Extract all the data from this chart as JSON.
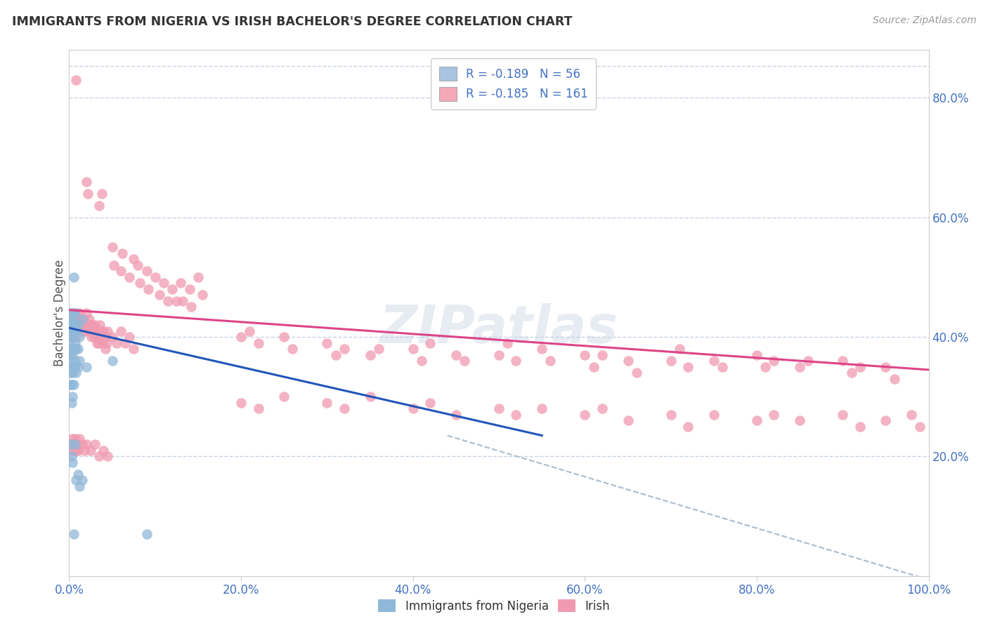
{
  "title": "IMMIGRANTS FROM NIGERIA VS IRISH BACHELOR'S DEGREE CORRELATION CHART",
  "source": "Source: ZipAtlas.com",
  "ylabel": "Bachelor's Degree",
  "xlim": [
    0.0,
    1.0
  ],
  "ylim": [
    0.0,
    0.88
  ],
  "xtick_labels": [
    "0.0%",
    "20.0%",
    "40.0%",
    "60.0%",
    "80.0%",
    "100.0%"
  ],
  "xtick_vals": [
    0.0,
    0.2,
    0.4,
    0.6,
    0.8,
    1.0
  ],
  "ytick_labels": [
    "20.0%",
    "40.0%",
    "60.0%",
    "80.0%"
  ],
  "ytick_vals": [
    0.2,
    0.4,
    0.6,
    0.8
  ],
  "legend_entries": [
    {
      "label": "R = -0.189   N = 56",
      "color": "#a8c4e0"
    },
    {
      "label": "R = -0.185   N = 161",
      "color": "#f4a8b8"
    }
  ],
  "legend_text_color": "#4472c4",
  "watermark": "ZIPatlas",
  "blue_scatter_color": "#90b8d8",
  "pink_scatter_color": "#f09ab0",
  "blue_line_color": "#2255bb",
  "pink_line_color": "#dd4488",
  "dashed_line_color": "#aabbcc",
  "title_color": "#333333",
  "grid_color": "#c8d4e4",
  "axis_color": "#cccccc",
  "tick_color": "#4472c4",
  "nigeria_points": [
    [
      0.001,
      0.43
    ],
    [
      0.001,
      0.41
    ],
    [
      0.001,
      0.39
    ],
    [
      0.001,
      0.37
    ],
    [
      0.002,
      0.44
    ],
    [
      0.002,
      0.42
    ],
    [
      0.002,
      0.4
    ],
    [
      0.002,
      0.38
    ],
    [
      0.002,
      0.36
    ],
    [
      0.002,
      0.34
    ],
    [
      0.002,
      0.32
    ],
    [
      0.002,
      0.22
    ],
    [
      0.003,
      0.43
    ],
    [
      0.003,
      0.41
    ],
    [
      0.003,
      0.38
    ],
    [
      0.003,
      0.35
    ],
    [
      0.003,
      0.32
    ],
    [
      0.003,
      0.29
    ],
    [
      0.003,
      0.2
    ],
    [
      0.004,
      0.42
    ],
    [
      0.004,
      0.4
    ],
    [
      0.004,
      0.37
    ],
    [
      0.004,
      0.34
    ],
    [
      0.004,
      0.3
    ],
    [
      0.004,
      0.19
    ],
    [
      0.005,
      0.5
    ],
    [
      0.005,
      0.44
    ],
    [
      0.005,
      0.41
    ],
    [
      0.005,
      0.38
    ],
    [
      0.005,
      0.35
    ],
    [
      0.005,
      0.32
    ],
    [
      0.005,
      0.07
    ],
    [
      0.006,
      0.44
    ],
    [
      0.006,
      0.41
    ],
    [
      0.006,
      0.38
    ],
    [
      0.006,
      0.35
    ],
    [
      0.007,
      0.42
    ],
    [
      0.007,
      0.39
    ],
    [
      0.007,
      0.36
    ],
    [
      0.007,
      0.22
    ],
    [
      0.008,
      0.41
    ],
    [
      0.008,
      0.38
    ],
    [
      0.008,
      0.34
    ],
    [
      0.008,
      0.16
    ],
    [
      0.01,
      0.42
    ],
    [
      0.01,
      0.38
    ],
    [
      0.01,
      0.35
    ],
    [
      0.01,
      0.17
    ],
    [
      0.012,
      0.4
    ],
    [
      0.012,
      0.36
    ],
    [
      0.012,
      0.15
    ],
    [
      0.015,
      0.43
    ],
    [
      0.015,
      0.16
    ],
    [
      0.02,
      0.35
    ],
    [
      0.05,
      0.36
    ],
    [
      0.09,
      0.07
    ]
  ],
  "irish_points": [
    [
      0.008,
      0.83
    ],
    [
      0.02,
      0.66
    ],
    [
      0.022,
      0.64
    ],
    [
      0.035,
      0.62
    ],
    [
      0.038,
      0.64
    ],
    [
      0.05,
      0.55
    ],
    [
      0.052,
      0.52
    ],
    [
      0.06,
      0.51
    ],
    [
      0.062,
      0.54
    ],
    [
      0.07,
      0.5
    ],
    [
      0.075,
      0.53
    ],
    [
      0.08,
      0.52
    ],
    [
      0.082,
      0.49
    ],
    [
      0.09,
      0.51
    ],
    [
      0.092,
      0.48
    ],
    [
      0.1,
      0.5
    ],
    [
      0.105,
      0.47
    ],
    [
      0.11,
      0.49
    ],
    [
      0.115,
      0.46
    ],
    [
      0.12,
      0.48
    ],
    [
      0.125,
      0.46
    ],
    [
      0.13,
      0.49
    ],
    [
      0.132,
      0.46
    ],
    [
      0.14,
      0.48
    ],
    [
      0.142,
      0.45
    ],
    [
      0.15,
      0.5
    ],
    [
      0.155,
      0.47
    ],
    [
      0.002,
      0.4
    ],
    [
      0.003,
      0.42
    ],
    [
      0.004,
      0.41
    ],
    [
      0.005,
      0.43
    ],
    [
      0.006,
      0.42
    ],
    [
      0.007,
      0.4
    ],
    [
      0.008,
      0.44
    ],
    [
      0.009,
      0.41
    ],
    [
      0.01,
      0.43
    ],
    [
      0.011,
      0.42
    ],
    [
      0.012,
      0.44
    ],
    [
      0.013,
      0.42
    ],
    [
      0.014,
      0.41
    ],
    [
      0.015,
      0.43
    ],
    [
      0.016,
      0.42
    ],
    [
      0.017,
      0.41
    ],
    [
      0.018,
      0.43
    ],
    [
      0.019,
      0.42
    ],
    [
      0.02,
      0.44
    ],
    [
      0.021,
      0.42
    ],
    [
      0.022,
      0.41
    ],
    [
      0.023,
      0.43
    ],
    [
      0.024,
      0.41
    ],
    [
      0.025,
      0.42
    ],
    [
      0.026,
      0.4
    ],
    [
      0.027,
      0.42
    ],
    [
      0.028,
      0.41
    ],
    [
      0.029,
      0.4
    ],
    [
      0.03,
      0.42
    ],
    [
      0.031,
      0.41
    ],
    [
      0.032,
      0.39
    ],
    [
      0.033,
      0.41
    ],
    [
      0.034,
      0.39
    ],
    [
      0.035,
      0.4
    ],
    [
      0.036,
      0.42
    ],
    [
      0.037,
      0.4
    ],
    [
      0.038,
      0.41
    ],
    [
      0.039,
      0.39
    ],
    [
      0.04,
      0.41
    ],
    [
      0.041,
      0.4
    ],
    [
      0.042,
      0.38
    ],
    [
      0.043,
      0.4
    ],
    [
      0.044,
      0.39
    ],
    [
      0.045,
      0.41
    ],
    [
      0.05,
      0.4
    ],
    [
      0.055,
      0.39
    ],
    [
      0.06,
      0.41
    ],
    [
      0.065,
      0.39
    ],
    [
      0.07,
      0.4
    ],
    [
      0.075,
      0.38
    ],
    [
      0.002,
      0.22
    ],
    [
      0.003,
      0.21
    ],
    [
      0.004,
      0.23
    ],
    [
      0.005,
      0.22
    ],
    [
      0.006,
      0.21
    ],
    [
      0.007,
      0.23
    ],
    [
      0.008,
      0.21
    ],
    [
      0.009,
      0.22
    ],
    [
      0.01,
      0.21
    ],
    [
      0.012,
      0.23
    ],
    [
      0.015,
      0.22
    ],
    [
      0.018,
      0.21
    ],
    [
      0.02,
      0.22
    ],
    [
      0.025,
      0.21
    ],
    [
      0.03,
      0.22
    ],
    [
      0.035,
      0.2
    ],
    [
      0.04,
      0.21
    ],
    [
      0.045,
      0.2
    ],
    [
      0.2,
      0.4
    ],
    [
      0.21,
      0.41
    ],
    [
      0.22,
      0.39
    ],
    [
      0.25,
      0.4
    ],
    [
      0.26,
      0.38
    ],
    [
      0.3,
      0.39
    ],
    [
      0.31,
      0.37
    ],
    [
      0.32,
      0.38
    ],
    [
      0.35,
      0.37
    ],
    [
      0.36,
      0.38
    ],
    [
      0.4,
      0.38
    ],
    [
      0.41,
      0.36
    ],
    [
      0.42,
      0.39
    ],
    [
      0.45,
      0.37
    ],
    [
      0.46,
      0.36
    ],
    [
      0.5,
      0.37
    ],
    [
      0.51,
      0.39
    ],
    [
      0.52,
      0.36
    ],
    [
      0.55,
      0.38
    ],
    [
      0.56,
      0.36
    ],
    [
      0.6,
      0.37
    ],
    [
      0.61,
      0.35
    ],
    [
      0.62,
      0.37
    ],
    [
      0.65,
      0.36
    ],
    [
      0.66,
      0.34
    ],
    [
      0.7,
      0.36
    ],
    [
      0.71,
      0.38
    ],
    [
      0.72,
      0.35
    ],
    [
      0.75,
      0.36
    ],
    [
      0.76,
      0.35
    ],
    [
      0.8,
      0.37
    ],
    [
      0.81,
      0.35
    ],
    [
      0.82,
      0.36
    ],
    [
      0.85,
      0.35
    ],
    [
      0.86,
      0.36
    ],
    [
      0.9,
      0.36
    ],
    [
      0.91,
      0.34
    ],
    [
      0.92,
      0.35
    ],
    [
      0.95,
      0.35
    ],
    [
      0.96,
      0.33
    ],
    [
      0.2,
      0.29
    ],
    [
      0.22,
      0.28
    ],
    [
      0.25,
      0.3
    ],
    [
      0.3,
      0.29
    ],
    [
      0.32,
      0.28
    ],
    [
      0.35,
      0.3
    ],
    [
      0.4,
      0.28
    ],
    [
      0.42,
      0.29
    ],
    [
      0.45,
      0.27
    ],
    [
      0.5,
      0.28
    ],
    [
      0.52,
      0.27
    ],
    [
      0.55,
      0.28
    ],
    [
      0.6,
      0.27
    ],
    [
      0.62,
      0.28
    ],
    [
      0.65,
      0.26
    ],
    [
      0.7,
      0.27
    ],
    [
      0.72,
      0.25
    ],
    [
      0.75,
      0.27
    ],
    [
      0.8,
      0.26
    ],
    [
      0.82,
      0.27
    ],
    [
      0.85,
      0.26
    ],
    [
      0.9,
      0.27
    ],
    [
      0.92,
      0.25
    ],
    [
      0.95,
      0.26
    ],
    [
      0.98,
      0.27
    ],
    [
      0.99,
      0.25
    ]
  ],
  "nigeria_line": {
    "x0": 0.0,
    "y0": 0.415,
    "x1": 0.55,
    "y1": 0.235
  },
  "irish_line": {
    "x0": 0.0,
    "y0": 0.445,
    "x1": 1.0,
    "y1": 0.345
  },
  "dashed_line": {
    "x0": 0.44,
    "y0": 0.235,
    "x1": 1.02,
    "y1": -0.015
  }
}
